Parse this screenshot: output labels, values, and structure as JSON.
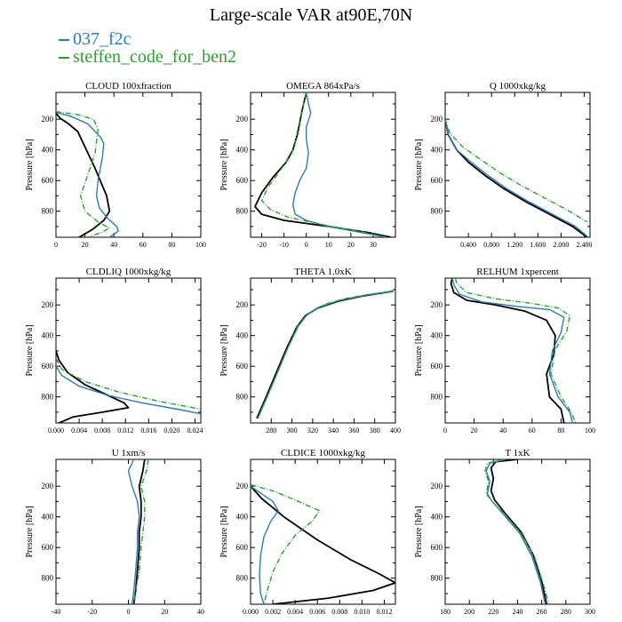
{
  "title": "Large-scale VAR at90E,70N",
  "legend": [
    {
      "name": "037_f2c",
      "color": "#2b7bba"
    },
    {
      "name": "steffen_code_for_ben2",
      "color": "#2ca02c"
    }
  ],
  "colors": {
    "ref": "#000000",
    "blue": "#2b7bba",
    "green": "#2ca02c"
  },
  "chart_data": [
    {
      "type": "line",
      "title": "CLOUD 100xfraction",
      "xlim": [
        0,
        100
      ],
      "xticks": [
        0,
        20,
        40,
        60,
        80,
        100
      ],
      "xtick_labels": [
        "0",
        "20",
        "40",
        "60",
        "80",
        "100"
      ],
      "ylabel": "Pressure [hPa]",
      "ylim": [
        970,
        25
      ],
      "yticks": [
        200,
        400,
        600,
        800
      ],
      "series": [
        {
          "line": "black",
          "x": [
            0,
            3,
            8,
            15,
            20,
            27,
            35,
            37,
            33,
            25,
            16
          ],
          "y": [
            160,
            195,
            225,
            280,
            380,
            520,
            700,
            800,
            860,
            920,
            970
          ]
        },
        {
          "line": "blue",
          "x": [
            0,
            10,
            22,
            31,
            33,
            32,
            29,
            28,
            30,
            36,
            42,
            43,
            37
          ],
          "y": [
            155,
            180,
            230,
            320,
            360,
            450,
            600,
            700,
            780,
            850,
            900,
            930,
            970
          ]
        },
        {
          "line": "green",
          "x": [
            0,
            15,
            26,
            29,
            27,
            22,
            17,
            20,
            29,
            37,
            31,
            22
          ],
          "y": [
            150,
            170,
            200,
            270,
            420,
            560,
            700,
            800,
            870,
            910,
            940,
            970
          ]
        }
      ]
    },
    {
      "type": "line",
      "title": "OMEGA 864xPa/s",
      "xlim": [
        -25,
        40
      ],
      "xticks": [
        -20,
        -10,
        0,
        10,
        20,
        30
      ],
      "xtick_labels": [
        "-20",
        "-10",
        "0",
        "10",
        "20",
        "30"
      ],
      "ylabel": "Pressure [hPa]",
      "ylim": [
        970,
        25
      ],
      "yticks": [
        200,
        400,
        600,
        800
      ],
      "series": [
        {
          "line": "black",
          "x": [
            0,
            -2,
            -4,
            -6,
            -9,
            -15,
            -20,
            -23,
            -20,
            -10,
            10,
            28,
            38
          ],
          "y": [
            25,
            150,
            300,
            400,
            480,
            580,
            680,
            770,
            820,
            860,
            900,
            940,
            970
          ]
        },
        {
          "line": "blue",
          "x": [
            0,
            1,
            2,
            0,
            0,
            1,
            0,
            -3,
            -5,
            -6,
            -5,
            0,
            10,
            25,
            36
          ],
          "y": [
            25,
            100,
            160,
            250,
            330,
            420,
            520,
            600,
            680,
            760,
            820,
            860,
            900,
            940,
            970
          ]
        },
        {
          "line": "green",
          "x": [
            0,
            -2,
            -4,
            -5,
            -7,
            -12,
            -17,
            -20,
            -16,
            -8,
            8,
            25,
            36
          ],
          "y": [
            25,
            150,
            280,
            360,
            440,
            540,
            640,
            730,
            790,
            840,
            890,
            935,
            970
          ]
        }
      ]
    },
    {
      "type": "line",
      "title": "Q 1000xkg/kg",
      "xlim": [
        0,
        2.5
      ],
      "xticks": [
        0.4,
        0.8,
        1.2,
        1.6,
        2.0,
        2.4
      ],
      "xtick_labels": [
        "0.400",
        "0.800",
        "1.200",
        "1.600",
        "2.000",
        "2.400"
      ],
      "ylabel": "Pressure [hPa]",
      "ylim": [
        970,
        25
      ],
      "yticks": [
        200,
        400,
        600,
        800
      ],
      "series": [
        {
          "line": "black",
          "x": [
            0.0,
            0.05,
            0.2,
            0.4,
            0.7,
            1.0,
            1.4,
            1.8,
            2.2,
            2.45
          ],
          "y": [
            200,
            300,
            400,
            480,
            570,
            650,
            740,
            820,
            900,
            970
          ]
        },
        {
          "line": "blue",
          "x": [
            0.0,
            0.05,
            0.2,
            0.45,
            0.75,
            1.05,
            1.45,
            1.85,
            2.25,
            2.47
          ],
          "y": [
            200,
            300,
            400,
            480,
            570,
            650,
            740,
            820,
            900,
            970
          ]
        },
        {
          "line": "green",
          "x": [
            0.0,
            0.08,
            0.3,
            0.6,
            0.95,
            1.3,
            1.7,
            2.1,
            2.45
          ],
          "y": [
            200,
            290,
            380,
            460,
            550,
            630,
            710,
            790,
            870
          ]
        }
      ]
    },
    {
      "type": "line",
      "title": "CLDLIQ 1000xkg/kg",
      "xlim": [
        0,
        0.025
      ],
      "xticks": [
        0,
        0.004,
        0.008,
        0.012,
        0.016,
        0.02,
        0.024
      ],
      "xtick_labels": [
        "0.000",
        "0.004",
        "0.008",
        "0.012",
        "0.016",
        "0.020",
        "0.024"
      ],
      "ylabel": "Pressure [hPa]",
      "ylim": [
        970,
        25
      ],
      "yticks": [
        200,
        400,
        600,
        800
      ],
      "series": [
        {
          "line": "black",
          "x": [
            0,
            0.0005,
            0.002,
            0.005,
            0.009,
            0.0118,
            0.0125,
            0.008,
            0.003,
            0.0005
          ],
          "y": [
            500,
            560,
            640,
            720,
            790,
            840,
            870,
            900,
            930,
            970
          ]
        },
        {
          "line": "blue",
          "x": [
            0,
            0.001,
            0.004,
            0.009,
            0.015,
            0.021,
            0.025
          ],
          "y": [
            600,
            660,
            730,
            790,
            840,
            880,
            910
          ]
        },
        {
          "line": "green",
          "x": [
            0,
            0.001,
            0.005,
            0.011,
            0.018,
            0.025
          ],
          "y": [
            550,
            620,
            700,
            770,
            830,
            880
          ]
        }
      ]
    },
    {
      "type": "line",
      "title": "THETA 1.0xK",
      "xlim": [
        260,
        400
      ],
      "xticks": [
        280,
        300,
        320,
        340,
        360,
        380,
        400
      ],
      "xtick_labels": [
        "280",
        "300",
        "320",
        "340",
        "360",
        "380",
        "400"
      ],
      "ylabel": "Pressure [hPa]",
      "ylim": [
        970,
        25
      ],
      "yticks": [
        200,
        400,
        600,
        800
      ],
      "series": [
        {
          "line": "black",
          "x": [
            266,
            275,
            285,
            295,
            305,
            313,
            325,
            345,
            370,
            398
          ],
          "y": [
            940,
            800,
            640,
            480,
            340,
            270,
            220,
            175,
            140,
            110
          ]
        },
        {
          "line": "blue",
          "x": [
            267,
            276,
            286,
            296,
            306,
            314,
            326,
            346,
            371,
            398
          ],
          "y": [
            940,
            800,
            640,
            480,
            340,
            268,
            215,
            170,
            137,
            110
          ]
        },
        {
          "line": "green",
          "x": [
            267,
            276,
            286,
            296,
            306,
            316,
            330,
            350,
            375,
            398
          ],
          "y": [
            940,
            800,
            640,
            480,
            330,
            255,
            200,
            160,
            130,
            110
          ]
        }
      ]
    },
    {
      "type": "line",
      "title": "RELHUM 1xpercent",
      "xlim": [
        0,
        100
      ],
      "xticks": [
        0,
        20,
        40,
        60,
        80,
        100
      ],
      "xtick_labels": [
        "0",
        "20",
        "40",
        "60",
        "80",
        "100"
      ],
      "ylabel": "Pressure [hPa]",
      "ylim": [
        970,
        25
      ],
      "yticks": [
        200,
        400,
        600,
        800
      ],
      "series": [
        {
          "line": "black",
          "x": [
            5,
            4,
            6,
            15,
            35,
            55,
            70,
            76,
            75,
            70,
            72,
            80,
            82
          ],
          "y": [
            25,
            60,
            120,
            170,
            200,
            240,
            300,
            400,
            520,
            650,
            800,
            880,
            970
          ]
        },
        {
          "line": "blue",
          "x": [
            5,
            6,
            10,
            25,
            50,
            72,
            82,
            80,
            74,
            72,
            78,
            86,
            88
          ],
          "y": [
            25,
            70,
            130,
            180,
            210,
            230,
            280,
            380,
            500,
            650,
            800,
            900,
            970
          ]
        },
        {
          "line": "green",
          "x": [
            7,
            8,
            15,
            35,
            60,
            78,
            86,
            84,
            76,
            73,
            80,
            87,
            90
          ],
          "y": [
            25,
            60,
            120,
            160,
            190,
            220,
            270,
            370,
            490,
            650,
            800,
            900,
            970
          ]
        }
      ]
    },
    {
      "type": "line",
      "title": "U 1xm/s",
      "xlim": [
        -40,
        40
      ],
      "xticks": [
        -40,
        -20,
        0,
        20,
        40
      ],
      "xtick_labels": [
        "-40",
        "-20",
        "0",
        "20",
        "40"
      ],
      "ylabel": "Pressure [hPa]",
      "ylim": [
        970,
        25
      ],
      "yticks": [
        200,
        400,
        600,
        800
      ],
      "series": [
        {
          "line": "black",
          "x": [
            9,
            8,
            6,
            7,
            7,
            6,
            6,
            5,
            4,
            3
          ],
          "y": [
            25,
            100,
            200,
            300,
            400,
            500,
            600,
            750,
            880,
            970
          ]
        },
        {
          "line": "blue",
          "x": [
            3,
            0,
            2,
            5,
            6,
            5,
            5,
            4,
            3,
            2
          ],
          "y": [
            25,
            100,
            200,
            300,
            400,
            500,
            600,
            750,
            880,
            970
          ]
        },
        {
          "line": "green",
          "x": [
            11,
            10,
            7,
            9,
            9,
            8,
            7,
            6,
            4,
            3
          ],
          "y": [
            25,
            100,
            200,
            300,
            400,
            500,
            600,
            750,
            880,
            970
          ]
        }
      ]
    },
    {
      "type": "line",
      "title": "CLDICE 1000xkg/kg",
      "xlim": [
        0,
        0.013
      ],
      "xticks": [
        0,
        0.002,
        0.004,
        0.006,
        0.008,
        0.01,
        0.012
      ],
      "xtick_labels": [
        "0.000",
        "0.002",
        "0.004",
        "0.006",
        "0.008",
        "0.010",
        "0.012"
      ],
      "ylabel": "Pressure [hPa]",
      "ylim": [
        970,
        25
      ],
      "yticks": [
        200,
        400,
        600,
        800
      ],
      "series": [
        {
          "line": "black",
          "x": [
            0.0,
            0.001,
            0.003,
            0.006,
            0.009,
            0.0115,
            0.013,
            0.011,
            0.007,
            0.002
          ],
          "y": [
            200,
            280,
            400,
            550,
            680,
            770,
            830,
            880,
            930,
            970
          ]
        },
        {
          "line": "blue",
          "x": [
            0.0,
            0.001,
            0.002,
            0.0025,
            0.0018,
            0.0012,
            0.0009,
            0.0008,
            0.0009,
            0.0012
          ],
          "y": [
            200,
            250,
            300,
            360,
            430,
            530,
            650,
            780,
            900,
            970
          ]
        },
        {
          "line": "green",
          "x": [
            0.0,
            0.002,
            0.004,
            0.0062,
            0.0055,
            0.004,
            0.0028,
            0.002,
            0.0015,
            0.0012
          ],
          "y": [
            190,
            230,
            290,
            360,
            430,
            520,
            640,
            760,
            880,
            970
          ]
        }
      ]
    },
    {
      "type": "line",
      "title": "T 1xK",
      "xlim": [
        180,
        300
      ],
      "xticks": [
        180,
        200,
        220,
        240,
        260,
        280,
        300
      ],
      "xtick_labels": [
        "180",
        "200",
        "220",
        "240",
        "260",
        "280",
        "300"
      ],
      "ylabel": "Pressure [hPa]",
      "ylim": [
        970,
        25
      ],
      "yticks": [
        200,
        400,
        600,
        800
      ],
      "series": [
        {
          "line": "black",
          "x": [
            240,
            222,
            218,
            220,
            218,
            221,
            230,
            243,
            253,
            260,
            264
          ],
          "y": [
            25,
            40,
            80,
            150,
            230,
            290,
            380,
            500,
            650,
            820,
            970
          ]
        },
        {
          "line": "blue",
          "x": [
            230,
            217,
            214,
            217,
            215,
            219,
            229,
            242,
            252,
            259,
            263
          ],
          "y": [
            25,
            50,
            100,
            170,
            250,
            300,
            390,
            510,
            660,
            830,
            970
          ]
        },
        {
          "line": "green",
          "x": [
            228,
            215,
            213,
            216,
            214,
            219,
            230,
            243,
            254,
            261,
            266
          ],
          "y": [
            25,
            50,
            100,
            170,
            250,
            300,
            390,
            510,
            660,
            830,
            970
          ]
        }
      ]
    }
  ]
}
